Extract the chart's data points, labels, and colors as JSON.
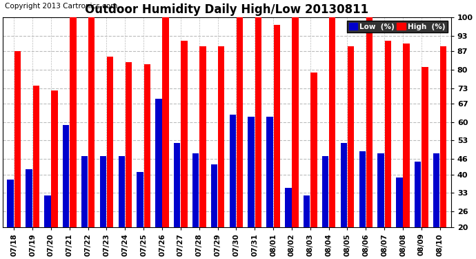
{
  "title": "Outdoor Humidity Daily High/Low 20130811",
  "copyright": "Copyright 2013 Cartronics.com",
  "dates": [
    "07/18",
    "07/19",
    "07/20",
    "07/21",
    "07/22",
    "07/23",
    "07/24",
    "07/25",
    "07/26",
    "07/27",
    "07/28",
    "07/29",
    "07/30",
    "07/31",
    "08/01",
    "08/02",
    "08/03",
    "08/04",
    "08/05",
    "08/06",
    "08/07",
    "08/08",
    "08/09",
    "08/10"
  ],
  "high": [
    87,
    74,
    72,
    100,
    100,
    85,
    83,
    82,
    100,
    91,
    89,
    89,
    100,
    100,
    97,
    100,
    79,
    100,
    89,
    100,
    91,
    90,
    81,
    89
  ],
  "low": [
    38,
    42,
    32,
    59,
    47,
    47,
    47,
    41,
    69,
    52,
    48,
    44,
    63,
    62,
    62,
    35,
    32,
    47,
    52,
    49,
    48,
    39,
    45,
    48
  ],
  "high_color": "#FF0000",
  "low_color": "#0000CC",
  "bg_color": "#FFFFFF",
  "plot_bg_color": "#FFFFFF",
  "grid_color": "#BBBBBB",
  "border_color": "#000000",
  "ylim": [
    20,
    100
  ],
  "yticks": [
    20,
    26,
    33,
    40,
    46,
    53,
    60,
    67,
    73,
    80,
    87,
    93,
    100
  ],
  "bar_width": 0.35,
  "bar_gap": 0.03,
  "title_fontsize": 12,
  "copyright_fontsize": 7.5,
  "tick_fontsize": 8,
  "legend_bg": "#333333",
  "legend_label_low": "Low  (%)",
  "legend_label_high": "High  (%)"
}
